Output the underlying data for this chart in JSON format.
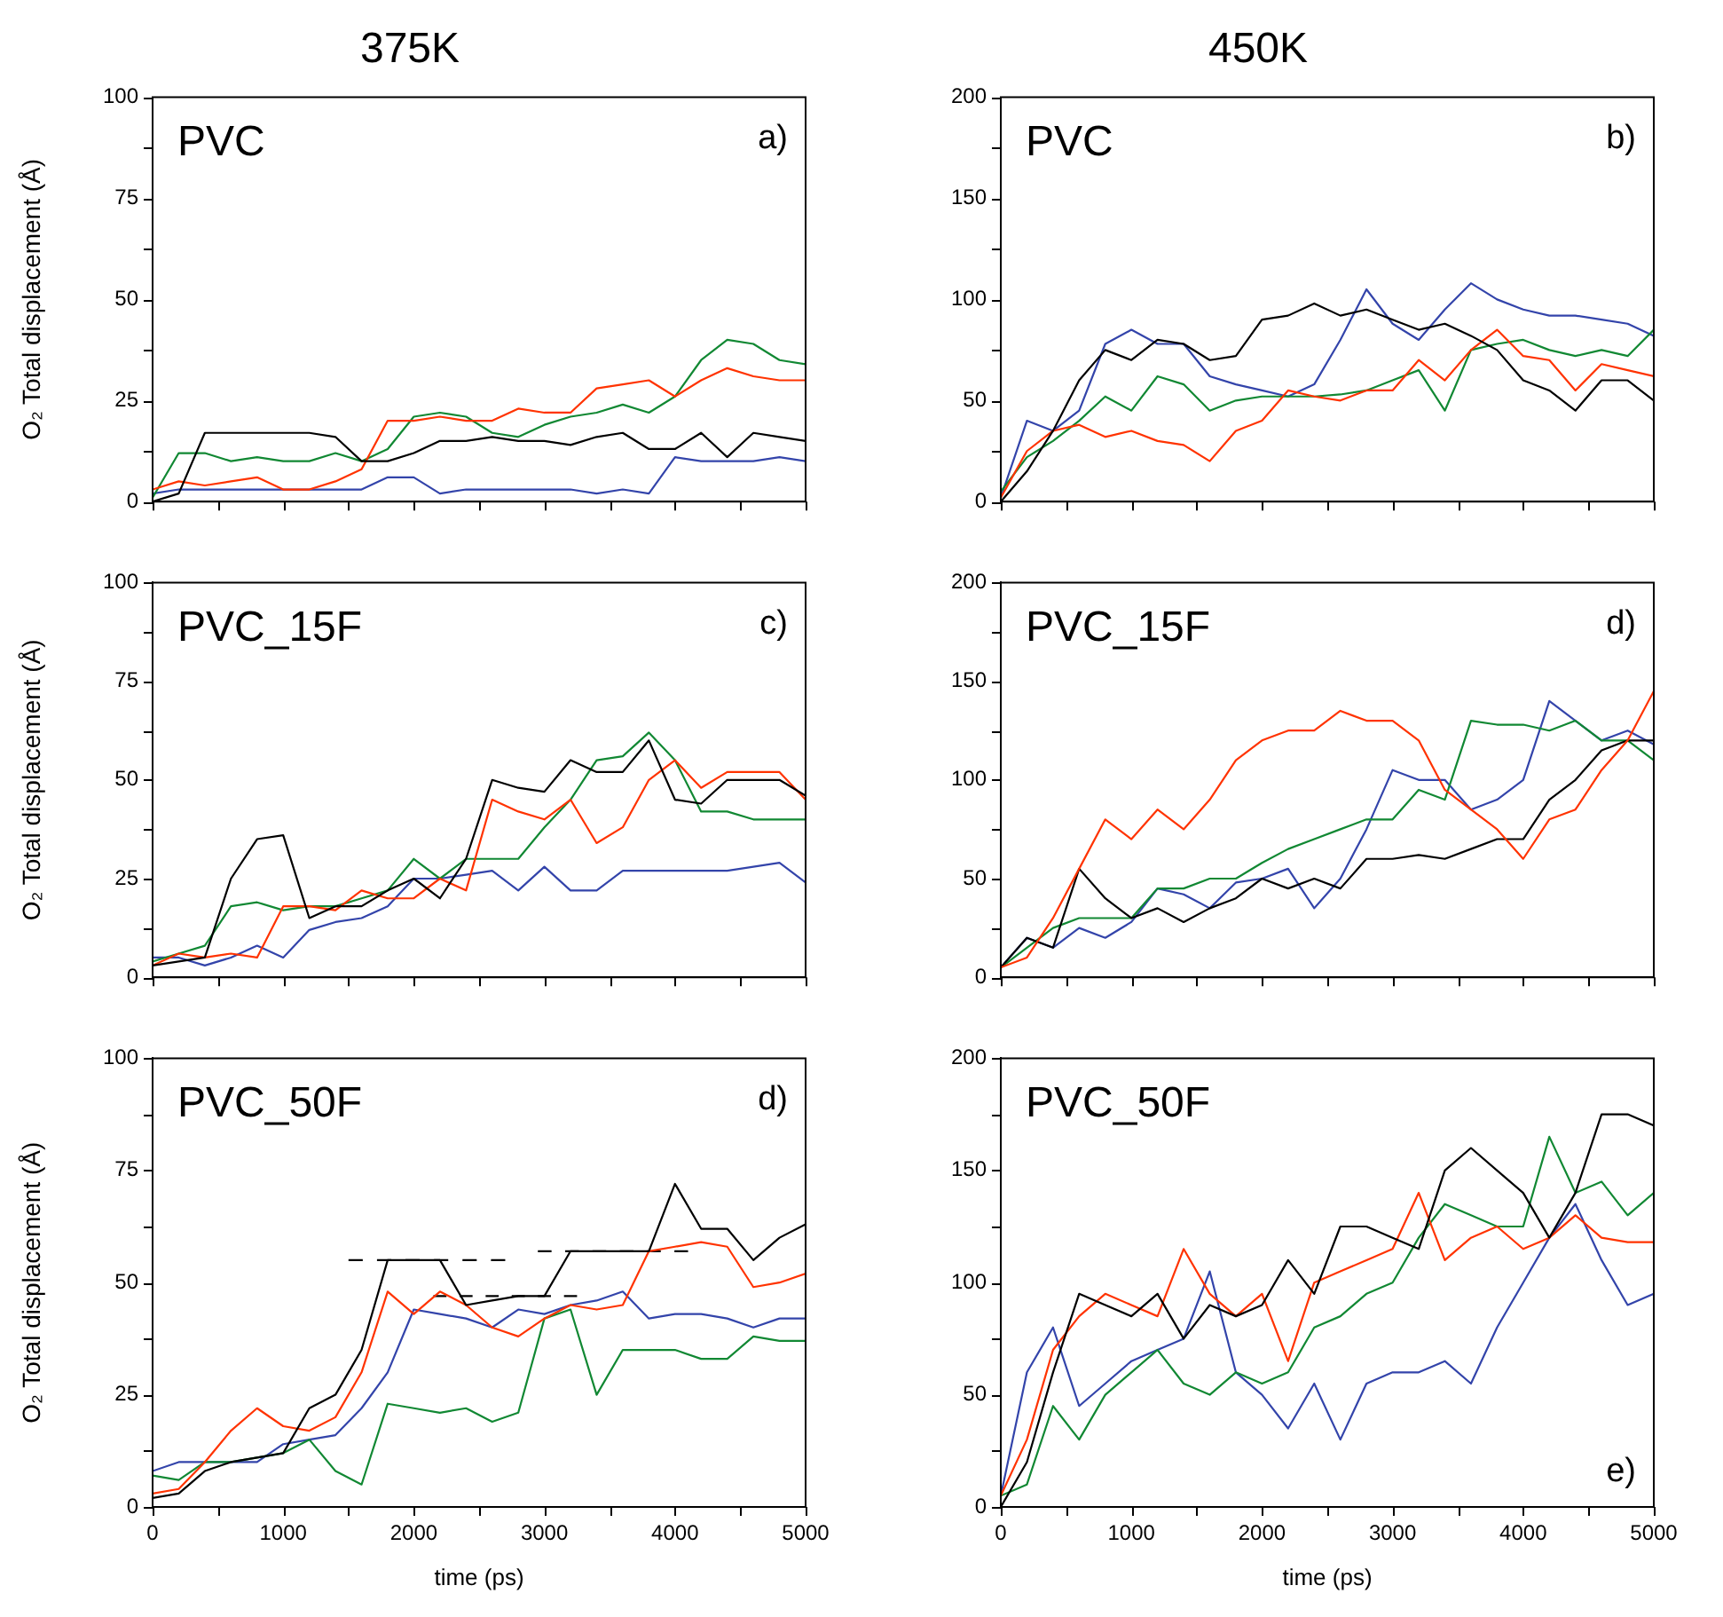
{
  "chart_data": [
    {
      "type": "line",
      "title": "375K",
      "ylabel": "O₂ Total displacement (Å)",
      "annotations": [
        "PVC",
        "a)"
      ],
      "marker": "none",
      "tick_labels": "y",
      "xlim": [
        0,
        5000
      ],
      "ylim": [
        0,
        100
      ],
      "xticks": [
        0,
        500,
        1000,
        1500,
        2000,
        2500,
        3000,
        3500,
        4000,
        4500,
        5000
      ],
      "yticks": [
        0,
        {
          "value": 12.5,
          "label": null
        },
        25,
        {
          "value": 37.5,
          "label": null
        },
        50,
        {
          "value": 62.5,
          "label": null
        },
        75,
        {
          "value": 87.5,
          "label": null
        },
        100
      ],
      "x": [
        0,
        200,
        400,
        600,
        800,
        1000,
        1200,
        1400,
        1600,
        1800,
        2000,
        2200,
        2400,
        2600,
        2800,
        3000,
        3200,
        3400,
        3600,
        3800,
        4000,
        4200,
        4400,
        4600,
        4800,
        5000
      ],
      "series": [
        {
          "color": "#000000",
          "values": [
            0,
            2,
            17,
            17,
            17,
            17,
            17,
            16,
            10,
            10,
            12,
            15,
            15,
            16,
            15,
            15,
            14,
            16,
            17,
            13,
            13,
            17,
            11,
            17,
            16,
            15
          ]
        },
        {
          "color": "#ff3300",
          "values": [
            3,
            5,
            4,
            5,
            6,
            3,
            3,
            5,
            8,
            20,
            20,
            21,
            20,
            20,
            23,
            22,
            22,
            28,
            29,
            30,
            26,
            30,
            33,
            31,
            30,
            30
          ]
        },
        {
          "color": "#118833",
          "values": [
            1,
            12,
            12,
            10,
            11,
            10,
            10,
            12,
            10,
            13,
            21,
            22,
            21,
            17,
            16,
            19,
            21,
            22,
            24,
            22,
            26,
            35,
            40,
            39,
            35,
            34
          ]
        },
        {
          "color": "#3344aa",
          "values": [
            2,
            3,
            3,
            3,
            3,
            3,
            3,
            3,
            3,
            6,
            6,
            2,
            3,
            3,
            3,
            3,
            3,
            2,
            3,
            2,
            11,
            10,
            10,
            10,
            11,
            10
          ]
        }
      ]
    },
    {
      "type": "line",
      "title": "450K",
      "annotations": [
        "PVC",
        "b)"
      ],
      "marker": "none",
      "tick_labels": "y",
      "xlim": [
        0,
        5000
      ],
      "ylim": [
        0,
        200
      ],
      "xticks": [
        0,
        500,
        1000,
        1500,
        2000,
        2500,
        3000,
        3500,
        4000,
        4500,
        5000
      ],
      "yticks": [
        0,
        {
          "value": 25,
          "label": null
        },
        50,
        {
          "value": 75,
          "label": null
        },
        100,
        {
          "value": 125,
          "label": null
        },
        150,
        {
          "value": 175,
          "label": null
        },
        200
      ],
      "x": [
        0,
        200,
        400,
        600,
        800,
        1000,
        1200,
        1400,
        1600,
        1800,
        2000,
        2200,
        2400,
        2600,
        2800,
        3000,
        3200,
        3400,
        3600,
        3800,
        4000,
        4200,
        4400,
        4600,
        4800,
        5000
      ],
      "series": [
        {
          "color": "#000000",
          "values": [
            0,
            15,
            35,
            60,
            75,
            70,
            80,
            78,
            70,
            72,
            90,
            92,
            98,
            92,
            95,
            90,
            85,
            88,
            82,
            75,
            60,
            55,
            45,
            60,
            60,
            50
          ]
        },
        {
          "color": "#ff3300",
          "values": [
            2,
            25,
            35,
            38,
            32,
            35,
            30,
            28,
            20,
            35,
            40,
            55,
            52,
            50,
            55,
            55,
            70,
            60,
            75,
            85,
            72,
            70,
            55,
            68,
            65,
            62
          ]
        },
        {
          "color": "#118833",
          "values": [
            5,
            22,
            30,
            40,
            52,
            45,
            62,
            58,
            45,
            50,
            52,
            52,
            52,
            53,
            55,
            60,
            65,
            45,
            75,
            78,
            80,
            75,
            72,
            75,
            72,
            85
          ]
        },
        {
          "color": "#3344aa",
          "values": [
            2,
            40,
            35,
            45,
            78,
            85,
            78,
            78,
            62,
            58,
            55,
            52,
            58,
            80,
            105,
            88,
            80,
            95,
            108,
            100,
            95,
            92,
            92,
            90,
            88,
            82
          ]
        }
      ]
    },
    {
      "type": "line",
      "ylabel": "O₂ Total displacement (Å)",
      "annotations": [
        "PVC_15F",
        "c)"
      ],
      "marker": "none",
      "tick_labels": "y",
      "xlim": [
        0,
        5000
      ],
      "ylim": [
        0,
        100
      ],
      "xticks": [
        0,
        500,
        1000,
        1500,
        2000,
        2500,
        3000,
        3500,
        4000,
        4500,
        5000
      ],
      "yticks": [
        0,
        {
          "value": 12.5,
          "label": null
        },
        25,
        {
          "value": 37.5,
          "label": null
        },
        50,
        {
          "value": 62.5,
          "label": null
        },
        75,
        {
          "value": 87.5,
          "label": null
        },
        100
      ],
      "x": [
        0,
        200,
        400,
        600,
        800,
        1000,
        1200,
        1400,
        1600,
        1800,
        2000,
        2200,
        2400,
        2600,
        2800,
        3000,
        3200,
        3400,
        3600,
        3800,
        4000,
        4200,
        4400,
        4600,
        4800,
        5000
      ],
      "series": [
        {
          "color": "#000000",
          "values": [
            3,
            4,
            5,
            25,
            35,
            36,
            15,
            18,
            18,
            22,
            25,
            20,
            30,
            50,
            48,
            47,
            55,
            52,
            52,
            60,
            45,
            44,
            50,
            50,
            50,
            46
          ]
        },
        {
          "color": "#ff3300",
          "values": [
            3,
            6,
            5,
            6,
            5,
            18,
            18,
            17,
            22,
            20,
            20,
            25,
            22,
            45,
            42,
            40,
            45,
            34,
            38,
            50,
            55,
            48,
            52,
            52,
            52,
            45
          ]
        },
        {
          "color": "#118833",
          "values": [
            4,
            6,
            8,
            18,
            19,
            17,
            18,
            18,
            20,
            22,
            30,
            25,
            30,
            30,
            30,
            38,
            45,
            55,
            56,
            62,
            55,
            42,
            42,
            40,
            40,
            40
          ]
        },
        {
          "color": "#3344aa",
          "values": [
            5,
            5,
            3,
            5,
            8,
            5,
            12,
            14,
            15,
            18,
            25,
            25,
            26,
            27,
            22,
            28,
            22,
            22,
            27,
            27,
            27,
            27,
            27,
            28,
            29,
            24
          ]
        }
      ]
    },
    {
      "type": "line",
      "annotations": [
        "PVC_15F",
        "d)"
      ],
      "marker": "none",
      "tick_labels": "y",
      "xlim": [
        0,
        5000
      ],
      "ylim": [
        0,
        200
      ],
      "xticks": [
        0,
        500,
        1000,
        1500,
        2000,
        2500,
        3000,
        3500,
        4000,
        4500,
        5000
      ],
      "yticks": [
        0,
        {
          "value": 25,
          "label": null
        },
        50,
        {
          "value": 75,
          "label": null
        },
        100,
        {
          "value": 125,
          "label": null
        },
        150,
        {
          "value": 175,
          "label": null
        },
        200
      ],
      "x": [
        0,
        200,
        400,
        600,
        800,
        1000,
        1200,
        1400,
        1600,
        1800,
        2000,
        2200,
        2400,
        2600,
        2800,
        3000,
        3200,
        3400,
        3600,
        3800,
        4000,
        4200,
        4400,
        4600,
        4800,
        5000
      ],
      "series": [
        {
          "color": "#ff3300",
          "values": [
            5,
            10,
            30,
            55,
            80,
            70,
            85,
            75,
            90,
            110,
            120,
            125,
            125,
            135,
            130,
            130,
            120,
            95,
            85,
            75,
            60,
            80,
            85,
            105,
            120,
            145
          ]
        },
        {
          "color": "#000000",
          "values": [
            5,
            20,
            15,
            55,
            40,
            30,
            35,
            28,
            35,
            40,
            50,
            45,
            50,
            45,
            60,
            60,
            62,
            60,
            65,
            70,
            70,
            90,
            100,
            115,
            120,
            120
          ]
        },
        {
          "color": "#118833",
          "values": [
            5,
            15,
            25,
            30,
            30,
            30,
            45,
            45,
            50,
            50,
            58,
            65,
            70,
            75,
            80,
            80,
            95,
            90,
            130,
            128,
            128,
            125,
            130,
            120,
            120,
            110
          ]
        },
        {
          "color": "#3344aa",
          "values": [
            5,
            20,
            15,
            25,
            20,
            28,
            45,
            42,
            35,
            48,
            50,
            55,
            35,
            50,
            75,
            105,
            100,
            100,
            85,
            90,
            100,
            140,
            130,
            120,
            125,
            118
          ]
        }
      ]
    },
    {
      "type": "line",
      "ylabel": "O₂ Total displacement (Å)",
      "xlabel": "time (ps)",
      "annotations": [
        "PVC_50F",
        "d)"
      ],
      "marker": "none",
      "xlim": [
        0,
        5000
      ],
      "ylim": [
        0,
        100
      ],
      "xticks": [
        {
          "value": 0,
          "label": "0"
        },
        {
          "value": 500,
          "label": null
        },
        {
          "value": 1000,
          "label": "1000"
        },
        {
          "value": 1500,
          "label": null
        },
        {
          "value": 2000,
          "label": "2000"
        },
        {
          "value": 2500,
          "label": null
        },
        {
          "value": 3000,
          "label": "3000"
        },
        {
          "value": 3500,
          "label": null
        },
        {
          "value": 4000,
          "label": "4000"
        },
        {
          "value": 4500,
          "label": null
        },
        {
          "value": 5000,
          "label": "5000"
        }
      ],
      "yticks": [
        0,
        {
          "value": 12.5,
          "label": null
        },
        25,
        {
          "value": 37.5,
          "label": null
        },
        50,
        {
          "value": 62.5,
          "label": null
        },
        75,
        {
          "value": 87.5,
          "label": null
        },
        100
      ],
      "x": [
        0,
        200,
        400,
        600,
        800,
        1000,
        1200,
        1400,
        1600,
        1800,
        2000,
        2200,
        2400,
        2600,
        2800,
        3000,
        3200,
        3400,
        3600,
        3800,
        4000,
        4200,
        4400,
        4600,
        4800,
        5000
      ],
      "series": [
        {
          "color": "#000000",
          "values": [
            2,
            3,
            8,
            10,
            11,
            12,
            22,
            25,
            35,
            55,
            55,
            55,
            45,
            46,
            47,
            47,
            57,
            57,
            57,
            57,
            72,
            62,
            62,
            55,
            60,
            63
          ]
        },
        {
          "color": "#ff3300",
          "values": [
            3,
            4,
            10,
            17,
            22,
            18,
            17,
            20,
            30,
            48,
            43,
            48,
            45,
            40,
            38,
            42,
            45,
            44,
            45,
            57,
            58,
            59,
            58,
            49,
            50,
            52
          ]
        },
        {
          "color": "#118833",
          "values": [
            7,
            6,
            10,
            10,
            11,
            12,
            15,
            8,
            5,
            23,
            22,
            21,
            22,
            19,
            21,
            42,
            44,
            25,
            35,
            35,
            35,
            33,
            33,
            38,
            37,
            37
          ]
        },
        {
          "color": "#3344aa",
          "values": [
            8,
            10,
            10,
            10,
            10,
            14,
            15,
            16,
            22,
            30,
            44,
            43,
            42,
            40,
            44,
            43,
            45,
            46,
            48,
            42,
            43,
            43,
            42,
            40,
            42,
            42
          ]
        },
        {
          "color": "#000000",
          "line_style": "dashed",
          "x": [
            1500,
            2700
          ],
          "values": [
            55,
            55
          ]
        },
        {
          "color": "#000000",
          "line_style": "dashed",
          "x": [
            2150,
            3250
          ],
          "values": [
            47,
            47
          ]
        },
        {
          "color": "#000000",
          "line_style": "dashed",
          "x": [
            2950,
            4100
          ],
          "values": [
            57,
            57
          ]
        }
      ]
    },
    {
      "type": "line",
      "xlabel": "time (ps)",
      "annotations": [
        "PVC_50F",
        "e)"
      ],
      "marker": "none",
      "xlim": [
        0,
        5000
      ],
      "ylim": [
        0,
        200
      ],
      "xticks": [
        {
          "value": 0,
          "label": "0"
        },
        {
          "value": 500,
          "label": null
        },
        {
          "value": 1000,
          "label": "1000"
        },
        {
          "value": 1500,
          "label": null
        },
        {
          "value": 2000,
          "label": "2000"
        },
        {
          "value": 2500,
          "label": null
        },
        {
          "value": 3000,
          "label": "3000"
        },
        {
          "value": 3500,
          "label": null
        },
        {
          "value": 4000,
          "label": "4000"
        },
        {
          "value": 4500,
          "label": null
        },
        {
          "value": 5000,
          "label": "5000"
        }
      ],
      "yticks": [
        0,
        {
          "value": 25,
          "label": null
        },
        50,
        {
          "value": 75,
          "label": null
        },
        100,
        {
          "value": 125,
          "label": null
        },
        150,
        {
          "value": 175,
          "label": null
        },
        200
      ],
      "x": [
        0,
        200,
        400,
        600,
        800,
        1000,
        1200,
        1400,
        1600,
        1800,
        2000,
        2200,
        2400,
        2600,
        2800,
        3000,
        3200,
        3400,
        3600,
        3800,
        4000,
        4200,
        4400,
        4600,
        4800,
        5000
      ],
      "series": [
        {
          "color": "#000000",
          "values": [
            0,
            20,
            60,
            95,
            90,
            85,
            95,
            75,
            90,
            85,
            90,
            110,
            95,
            125,
            125,
            120,
            115,
            150,
            160,
            150,
            140,
            120,
            140,
            175,
            175,
            170
          ]
        },
        {
          "color": "#ff3300",
          "values": [
            5,
            30,
            70,
            85,
            95,
            90,
            85,
            115,
            95,
            85,
            95,
            65,
            100,
            105,
            110,
            115,
            140,
            110,
            120,
            125,
            115,
            120,
            130,
            120,
            118,
            118
          ]
        },
        {
          "color": "#118833",
          "values": [
            5,
            10,
            45,
            30,
            50,
            60,
            70,
            55,
            50,
            60,
            55,
            60,
            80,
            85,
            95,
            100,
            120,
            135,
            130,
            125,
            125,
            165,
            140,
            145,
            130,
            140
          ]
        },
        {
          "color": "#3344aa",
          "values": [
            5,
            60,
            80,
            45,
            55,
            65,
            70,
            75,
            105,
            60,
            50,
            35,
            55,
            30,
            55,
            60,
            60,
            65,
            55,
            80,
            100,
            120,
            135,
            110,
            90,
            95
          ]
        }
      ]
    }
  ]
}
